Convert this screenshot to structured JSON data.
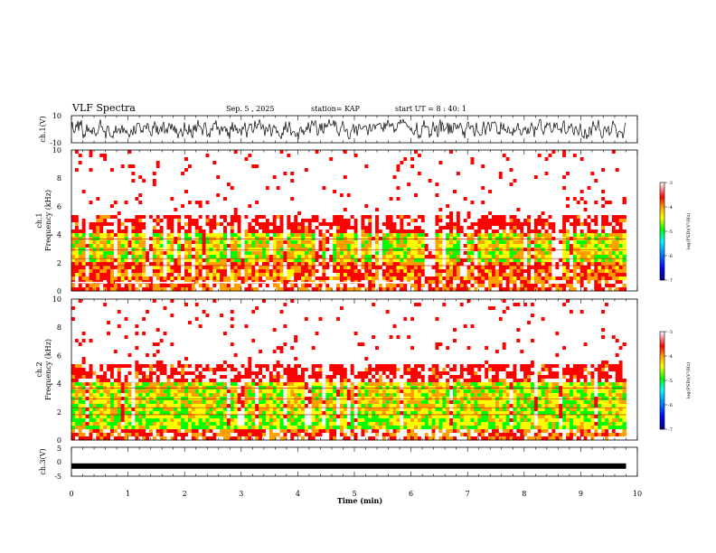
{
  "header": {
    "title": "VLF Spectra",
    "date": "Sep. 5 , 2025",
    "station": "station= KAP",
    "start": "start UT = 8 : 40: 1"
  },
  "chart_data": [
    {
      "id": "ch1-waveform",
      "type": "line",
      "ylabel": "ch.1(V)",
      "ylim": [
        -10,
        10
      ],
      "yticks": [
        "10",
        "-10"
      ],
      "xlim": [
        0,
        10
      ],
      "x_end": 9.8
    },
    {
      "id": "ch1-spectrogram",
      "type": "heatmap",
      "ylabel_top": "ch.1",
      "ylabel": "Frequency (kHz)",
      "ylim": [
        0,
        10
      ],
      "yticks": [
        "0",
        "2",
        "4",
        "6",
        "8",
        "10"
      ],
      "xlim": [
        0,
        10
      ],
      "x_end": 9.8,
      "colorbar": {
        "label": "log(PSD)(V²/Hz)",
        "range": [
          -7,
          -3
        ],
        "ticks": [
          "-3",
          "-4",
          "-5",
          "-6",
          "-7"
        ]
      }
    },
    {
      "id": "ch2-spectrogram",
      "type": "heatmap",
      "ylabel_top": "ch.2",
      "ylabel": "Frequency (kHz)",
      "ylim": [
        0,
        10
      ],
      "yticks": [
        "0",
        "2",
        "4",
        "6",
        "8",
        "10"
      ],
      "xlim": [
        0,
        10
      ],
      "x_end": 9.8,
      "colorbar": {
        "label": "log(PSD)(V²/Hz)",
        "range": [
          -7,
          -3
        ],
        "ticks": [
          "-3",
          "-4",
          "-5",
          "-6",
          "-7"
        ]
      }
    },
    {
      "id": "ch3-waveform",
      "type": "line",
      "ylabel": "ch.3(V)",
      "ylim": [
        -5,
        5
      ],
      "yticks": [
        "5",
        "0",
        "-5"
      ],
      "xlim": [
        0,
        10
      ],
      "x_end": 9.8,
      "level": -1.5
    }
  ],
  "x_axis": {
    "label": "Time (min)",
    "ticks": [
      "0",
      "1",
      "2",
      "3",
      "4",
      "5",
      "6",
      "7",
      "8",
      "9",
      "10"
    ]
  },
  "colors": {
    "colormap": [
      "#000080",
      "#0000ff",
      "#00a0ff",
      "#00ffff",
      "#00ff00",
      "#ffff00",
      "#ffa000",
      "#ff0000",
      "#ffffff"
    ]
  }
}
